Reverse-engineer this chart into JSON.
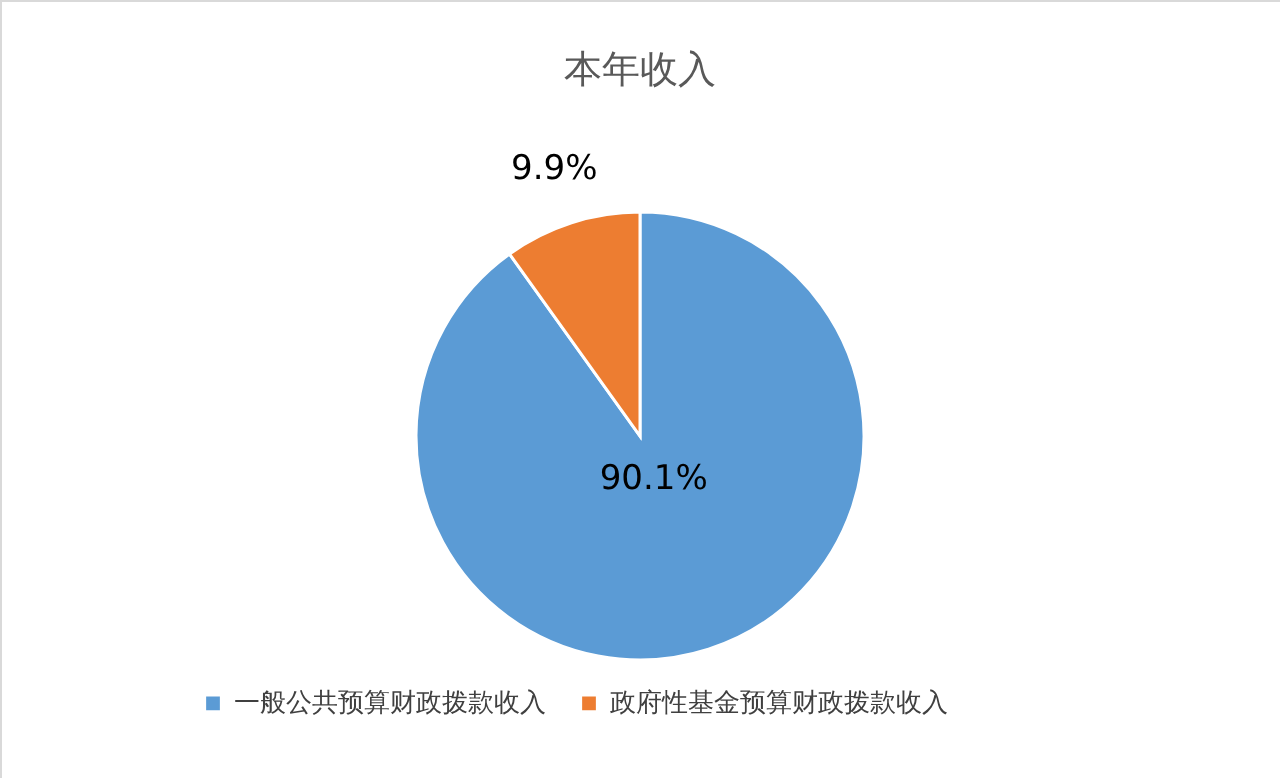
{
  "chart_data": {
    "type": "pie",
    "title": "本年收入",
    "categories": [
      "一般公共预算财政拨款收入",
      "政府性基金预算财政拨款收入"
    ],
    "values": [
      90.1,
      9.9
    ],
    "colors": [
      "#5b9bd5",
      "#ed7d31"
    ],
    "value_labels": [
      "90.1%",
      "9.9%"
    ],
    "legend": "bottom"
  }
}
